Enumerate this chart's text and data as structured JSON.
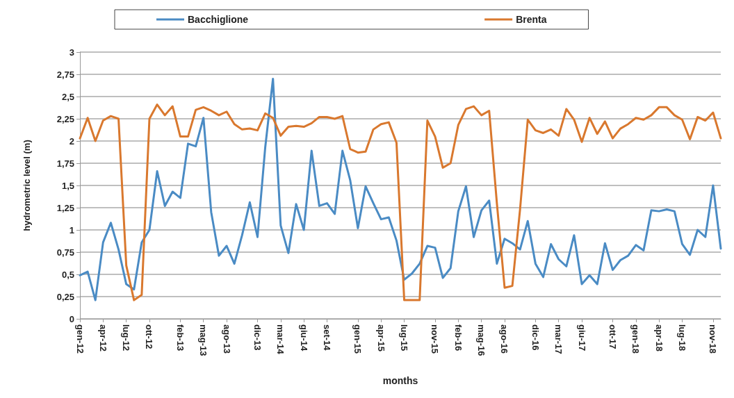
{
  "chart_data": {
    "type": "line",
    "xlabel": "months",
    "ylabel": "hydrometric level (m)",
    "categories": [
      "gen-12",
      null,
      null,
      "apr-12",
      null,
      null,
      "lug-12",
      null,
      null,
      "ott-12",
      null,
      null,
      null,
      "feb-13",
      null,
      null,
      "mag-13",
      null,
      null,
      "ago-13",
      null,
      null,
      null,
      "dic-13",
      null,
      null,
      "mar-14",
      null,
      null,
      "giu-14",
      null,
      null,
      "set-14",
      null,
      null,
      null,
      "gen-15",
      null,
      null,
      "apr-15",
      null,
      null,
      "lug-15",
      null,
      null,
      null,
      "nov-15",
      null,
      null,
      "feb-16",
      null,
      null,
      "mag-16",
      null,
      null,
      "ago-16",
      null,
      null,
      null,
      "dic-16",
      null,
      null,
      "mar-17",
      null,
      null,
      "giu-17",
      null,
      null,
      null,
      "ott-17",
      null,
      null,
      "gen-18",
      null,
      null,
      "apr-18",
      null,
      null,
      "lug-18",
      null,
      null,
      null,
      "nov-18",
      null
    ],
    "series": [
      {
        "name": "Bacchiglione",
        "color": "#4a8bc4",
        "values": [
          0.49,
          0.53,
          0.21,
          0.86,
          1.08,
          0.78,
          0.39,
          0.33,
          0.86,
          1.0,
          1.66,
          1.27,
          1.43,
          1.36,
          1.97,
          1.94,
          2.26,
          1.2,
          0.71,
          0.82,
          0.62,
          0.94,
          1.31,
          0.92,
          1.93,
          2.7,
          1.05,
          0.74,
          1.29,
          1.0,
          1.89,
          1.27,
          1.3,
          1.18,
          1.89,
          1.56,
          1.02,
          1.49,
          1.3,
          1.12,
          1.14,
          0.88,
          0.44,
          0.51,
          0.62,
          0.82,
          0.8,
          0.46,
          0.57,
          1.21,
          1.49,
          0.92,
          1.22,
          1.33,
          0.62,
          0.9,
          0.85,
          0.78,
          1.1,
          0.62,
          0.47,
          0.84,
          0.67,
          0.59,
          0.94,
          0.39,
          0.49,
          0.39,
          0.85,
          0.55,
          0.66,
          0.71,
          0.83,
          0.77,
          1.22,
          1.21,
          1.23,
          1.21,
          0.84,
          0.72,
          1.0,
          0.92,
          1.5,
          0.79
        ]
      },
      {
        "name": "Brenta",
        "color": "#d9782e",
        "values": [
          2.03,
          2.26,
          2.0,
          2.23,
          2.28,
          2.25,
          0.6,
          0.21,
          0.27,
          2.25,
          2.41,
          2.29,
          2.39,
          2.05,
          2.05,
          2.35,
          2.38,
          2.34,
          2.29,
          2.33,
          2.19,
          2.13,
          2.14,
          2.12,
          2.31,
          2.26,
          2.06,
          2.16,
          2.17,
          2.16,
          2.2,
          2.27,
          2.27,
          2.25,
          2.28,
          1.91,
          1.87,
          1.88,
          2.13,
          2.19,
          2.21,
          1.98,
          0.21,
          0.21,
          0.21,
          2.23,
          2.05,
          1.7,
          1.75,
          2.18,
          2.36,
          2.39,
          2.29,
          2.34,
          1.3,
          0.35,
          0.37,
          1.23,
          2.24,
          2.12,
          2.09,
          2.13,
          2.06,
          2.36,
          2.24,
          1.99,
          2.26,
          2.08,
          2.22,
          2.03,
          2.14,
          2.19,
          2.26,
          2.24,
          2.29,
          2.38,
          2.38,
          2.29,
          2.24,
          2.02,
          2.27,
          2.23,
          2.32,
          2.03
        ]
      }
    ],
    "ylim": [
      0,
      3
    ],
    "yticks": [
      0,
      {
        "value": 0.25,
        "label": "0,25"
      },
      {
        "value": 0.5,
        "label": "0,5"
      },
      {
        "value": 0.75,
        "label": "0,75"
      },
      1,
      {
        "value": 1.25,
        "label": "1,25"
      },
      {
        "value": 1.5,
        "label": "1,5"
      },
      {
        "value": 1.75,
        "label": "1,75"
      },
      2,
      {
        "value": 2.25,
        "label": "2,25"
      },
      {
        "value": 2.5,
        "label": "2,5"
      },
      {
        "value": 2.75,
        "label": "2,75"
      },
      3
    ],
    "grid": "y",
    "legend": "top",
    "marker": "none",
    "line_style": "solid"
  }
}
